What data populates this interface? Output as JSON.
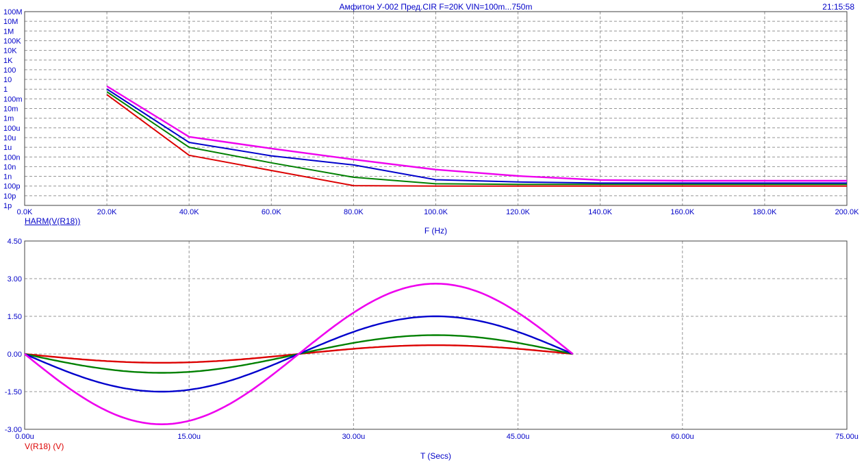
{
  "window": {
    "title": "Амфитон У-002 Пред.CIR F=20K VIN=100m...750m",
    "clock": "21:15:58"
  },
  "palette": {
    "text_blue": "#0000C8",
    "text_red": "#DC0000",
    "grid": "#949494",
    "border": "#404040",
    "background": "#FFFFFF"
  },
  "chart_data": [
    {
      "type": "line",
      "id": "harmonic-spectrum",
      "title": "HARM(V(R18))",
      "xlabel": "F (Hz)",
      "y_scale": "log10",
      "grid": "dashed",
      "legend_position": "none",
      "y_tick_labels": [
        "100M",
        "10M",
        "1M",
        "100K",
        "10K",
        "1K",
        "100",
        "10",
        "1",
        "100m",
        "10m",
        "1m",
        "100u",
        "10u",
        "1u",
        "100n",
        "10n",
        "1n",
        "100p",
        "10p",
        "1p"
      ],
      "y_range_log10": [
        8,
        -12
      ],
      "x_tick_labels": [
        "0.0K",
        "20.0K",
        "40.0K",
        "60.0K",
        "80.0K",
        "100.0K",
        "120.0K",
        "140.0K",
        "160.0K",
        "180.0K",
        "200.0K"
      ],
      "x_range_khz": [
        0,
        200
      ],
      "x_khz": [
        20,
        40,
        60,
        80,
        100,
        120,
        140,
        160,
        180,
        200
      ],
      "series": [
        {
          "name": "trace-red",
          "color": "#DC0000",
          "width": 2,
          "values": [
            0.27,
            1.5e-07,
            4e-09,
            1.1e-10,
            1e-10,
            1e-10,
            1e-10,
            1e-10,
            1e-10,
            1e-10
          ]
        },
        {
          "name": "trace-green",
          "color": "#008000",
          "width": 2,
          "values": [
            0.54,
            1e-06,
            2.5e-08,
            8e-10,
            1.7e-10,
            1.5e-10,
            1.5e-10,
            1.5e-10,
            1.5e-10,
            1.5e-10
          ]
        },
        {
          "name": "trace-blue",
          "color": "#0000CC",
          "width": 2,
          "values": [
            1.02,
            3.2e-06,
            1.3e-07,
            1.5e-08,
            4.5e-10,
            2.6e-10,
            2e-10,
            2e-10,
            2e-10,
            2e-10
          ]
        },
        {
          "name": "trace-magenta",
          "color": "#EE00EE",
          "width": 2.4,
          "values": [
            2.0,
            1.2e-05,
            7.5e-07,
            5.5e-08,
            5e-09,
            1.1e-09,
            4.2e-10,
            3.5e-10,
            3.5e-10,
            3.5e-10
          ]
        }
      ]
    },
    {
      "type": "line",
      "id": "transient-waveform",
      "title": "V(R18) (V)",
      "xlabel": "T (Secs)",
      "y_scale": "linear",
      "grid": "dashed",
      "legend_position": "none",
      "y_tick_labels": [
        "4.50",
        "3.00",
        "1.50",
        "0.00",
        "-1.50",
        "-3.00"
      ],
      "ylim": [
        -3.0,
        4.5
      ],
      "x_tick_labels": [
        "0.00u",
        "15.00u",
        "30.00u",
        "45.00u",
        "60.00u",
        "75.00u"
      ],
      "xlim_us": [
        0,
        75
      ],
      "waveform": {
        "shape": "sine",
        "starts": "negative-half-cycle",
        "period_us": 50,
        "t_start_us": 0,
        "t_end_us": 50
      },
      "series": [
        {
          "name": "trace-red",
          "color": "#DC0000",
          "width": 2.4,
          "amplitude_v": 0.35
        },
        {
          "name": "trace-green",
          "color": "#008000",
          "width": 2.4,
          "amplitude_v": 0.75
        },
        {
          "name": "trace-blue",
          "color": "#0000CC",
          "width": 2.4,
          "amplitude_v": 1.5
        },
        {
          "name": "trace-magenta",
          "color": "#EE00EE",
          "width": 2.6,
          "amplitude_v": 2.8
        }
      ]
    }
  ]
}
